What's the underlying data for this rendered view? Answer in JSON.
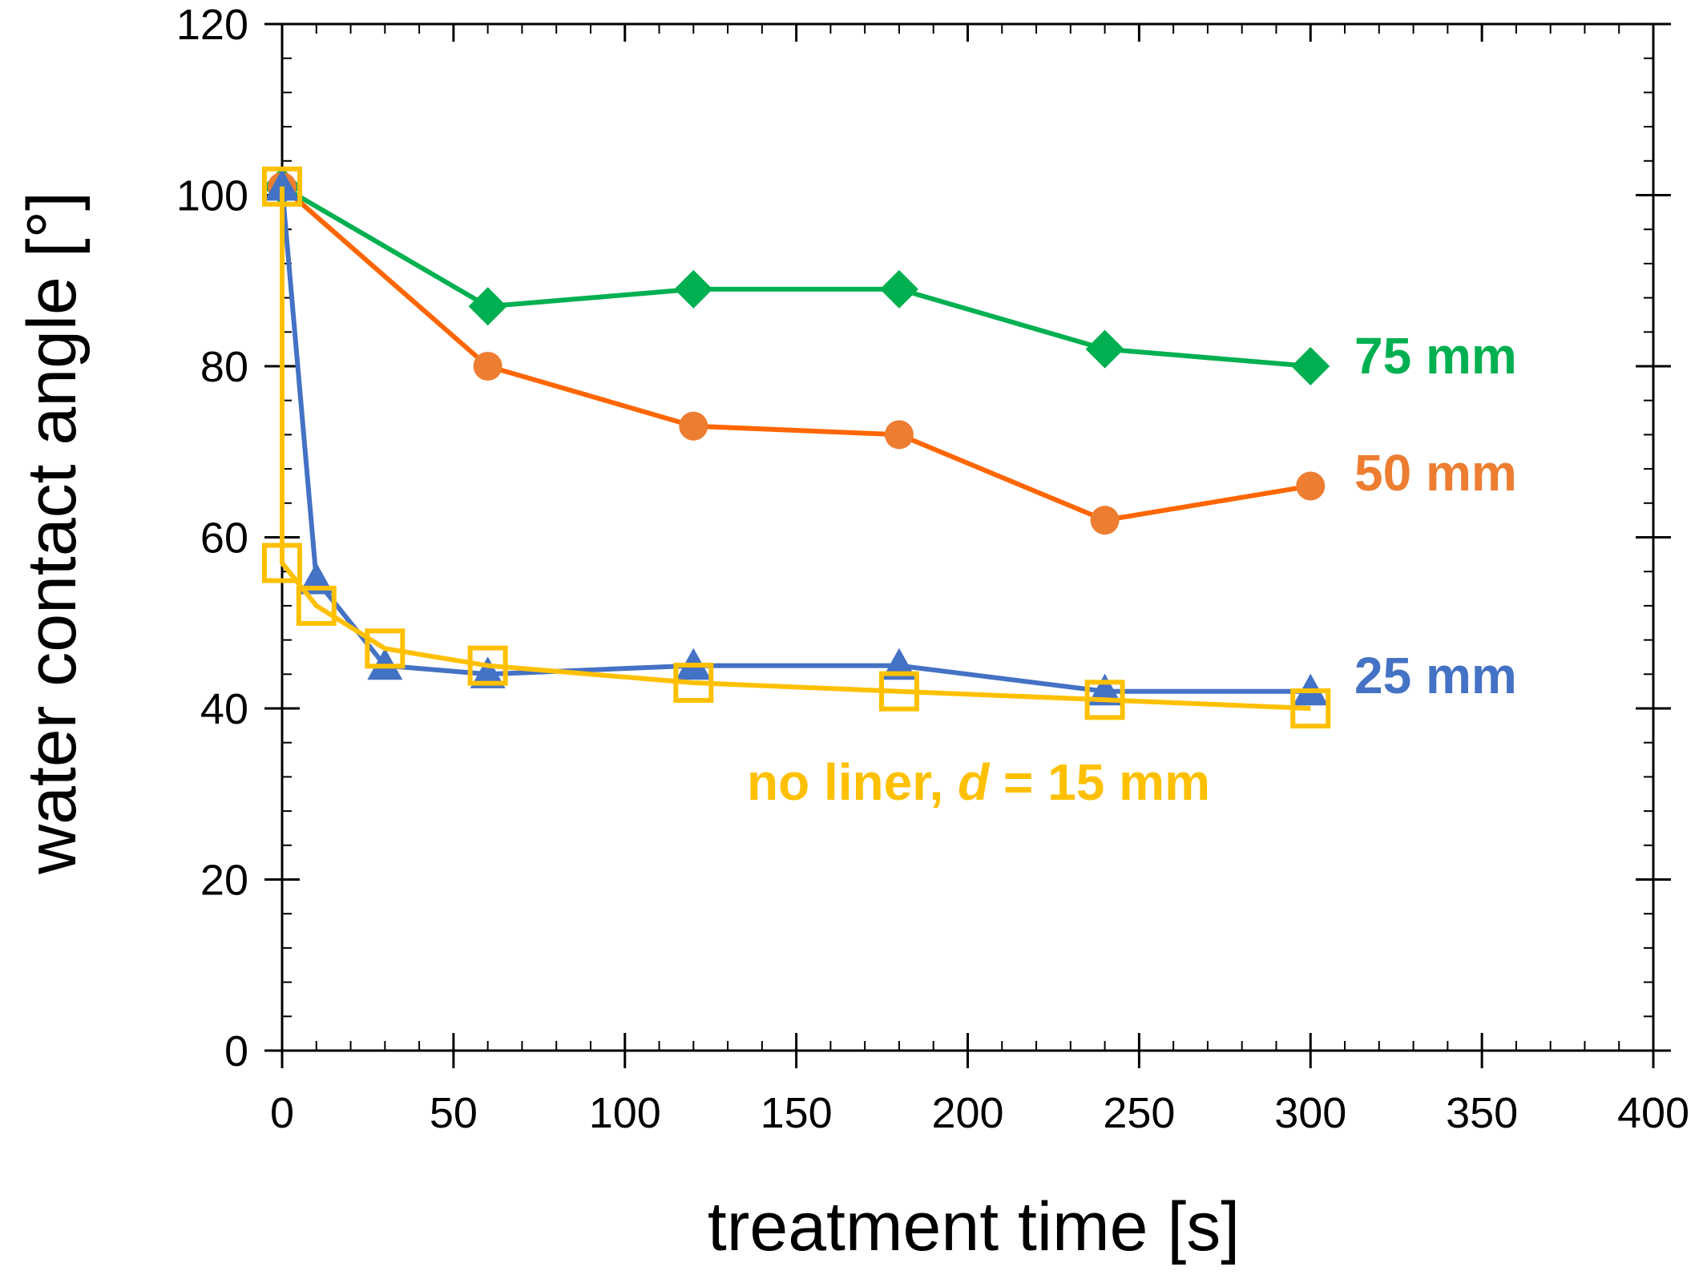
{
  "chart_data": {
    "type": "line",
    "title": "",
    "xlabel": "treatment time [s]",
    "ylabel": "water contact angle [°]",
    "xlim": [
      0,
      400
    ],
    "ylim": [
      0,
      120
    ],
    "x_ticks": [
      0,
      50,
      100,
      150,
      200,
      250,
      300,
      350,
      400
    ],
    "y_ticks": [
      0,
      20,
      40,
      60,
      80,
      100,
      120
    ],
    "x_minor_step": 10,
    "y_minor_step": 4,
    "grid": false,
    "series": [
      {
        "name": "75 mm",
        "label_text": "75 mm",
        "color": "#00B050",
        "marker": "diamond",
        "x": [
          0,
          60,
          120,
          180,
          240,
          300
        ],
        "y": [
          101,
          87,
          89,
          89,
          82,
          80
        ]
      },
      {
        "name": "50 mm",
        "label_text": "50 mm",
        "color": "#ED7D31",
        "line_color": "#FF6600",
        "marker": "circle",
        "x": [
          0,
          60,
          120,
          180,
          240,
          300
        ],
        "y": [
          101,
          80,
          73,
          72,
          62,
          66
        ]
      },
      {
        "name": "25 mm",
        "label_text": "25 mm",
        "color": "#4472C4",
        "marker": "triangle",
        "x": [
          0,
          10,
          30,
          60,
          120,
          180,
          240,
          300
        ],
        "y": [
          101,
          55,
          45,
          44,
          45,
          45,
          42,
          42
        ]
      },
      {
        "name": "no liner, d = 15 mm",
        "label_parts": [
          "no liner, ",
          "d",
          " = 15 mm"
        ],
        "color": "#FFC000",
        "marker": "square-open",
        "x": [
          0,
          0,
          10,
          30,
          60,
          120,
          180,
          240,
          300
        ],
        "y": [
          101,
          57,
          52,
          47,
          45,
          43,
          42,
          41,
          40
        ]
      }
    ]
  }
}
